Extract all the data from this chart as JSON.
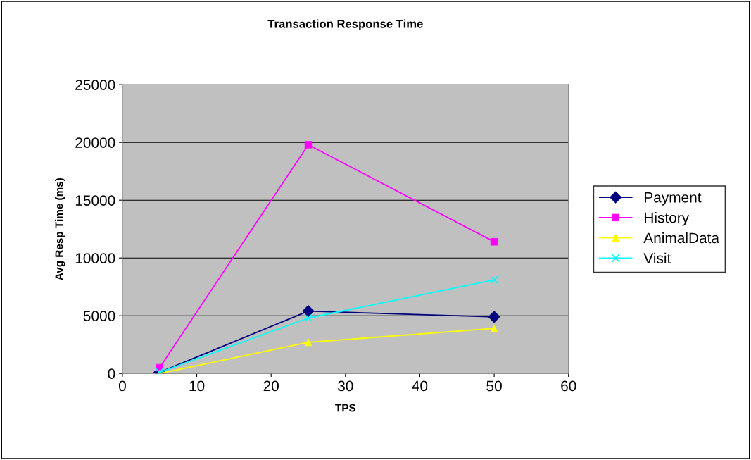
{
  "chart_data": {
    "type": "line",
    "title": "Transaction Response Time",
    "xlabel": "TPS",
    "ylabel": "Avg Resp Time (ms)",
    "x": [
      5,
      25,
      50
    ],
    "series": [
      {
        "name": "Payment",
        "color": "#000080",
        "marker": "diamond",
        "values": [
          100,
          5400,
          4900
        ]
      },
      {
        "name": "History",
        "color": "#ff00ff",
        "marker": "square",
        "values": [
          500,
          19800,
          11400
        ]
      },
      {
        "name": "AnimalData",
        "color": "#ffff00",
        "marker": "triangle",
        "values": [
          0,
          2700,
          3900
        ]
      },
      {
        "name": "Visit",
        "color": "#00ffff",
        "marker": "cross",
        "values": [
          100,
          4800,
          8100
        ]
      }
    ],
    "xlim": [
      0,
      60
    ],
    "xticks": [
      0,
      10,
      20,
      30,
      40,
      50,
      60
    ],
    "ylim": [
      0,
      25000
    ],
    "yticks": [
      0,
      5000,
      10000,
      15000,
      20000,
      25000
    ],
    "grid": "y",
    "legend": "right",
    "line_style": "solid"
  }
}
